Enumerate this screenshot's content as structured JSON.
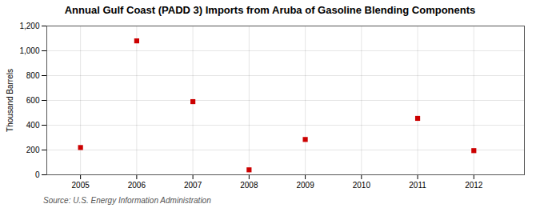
{
  "chart_data": {
    "type": "scatter",
    "title": "Annual Gulf Coast (PADD 3) Imports from Aruba of Gasoline Blending Components",
    "ylabel": "Thousand Barrels",
    "annotation": "Source: U.S. Energy Information Administration",
    "x": [
      2005,
      2006,
      2007,
      2008,
      2009,
      2011,
      2012
    ],
    "values": [
      220,
      1080,
      590,
      40,
      285,
      455,
      195
    ],
    "xlim": [
      2004.4,
      2012.9
    ],
    "ylim": [
      0,
      1200
    ],
    "xticks": [
      2005,
      2006,
      2007,
      2008,
      2009,
      2010,
      2011,
      2012
    ],
    "yticks": [
      0,
      200,
      400,
      600,
      {
        "value": 1000,
        "label": "1,000"
      },
      {
        "value": 1200,
        "label": "1,200"
      },
      800
    ],
    "color": "#cc0000",
    "marker": "square",
    "grid": true
  }
}
